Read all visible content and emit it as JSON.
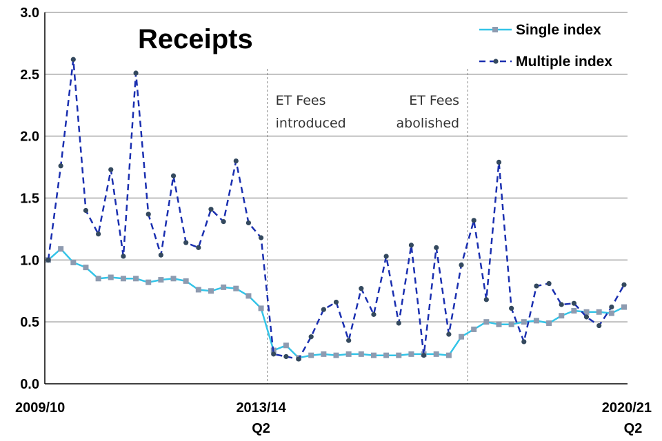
{
  "chart_data": {
    "type": "line",
    "title": "Receipts",
    "ylim": [
      0,
      3
    ],
    "y_ticks": [
      "0.0",
      "0.5",
      "1.0",
      "1.5",
      "2.0",
      "2.5",
      "3.0"
    ],
    "x_tick_labels": [
      {
        "line1": "2009/10",
        "line2": ""
      },
      {
        "line1": "2013/14",
        "line2": "Q2"
      },
      {
        "line1": "2020/21",
        "line2": "Q2"
      }
    ],
    "x_tick_indices": [
      0,
      17,
      46
    ],
    "grid": "horizontal",
    "legend_position": "top-right",
    "n_points": 47,
    "series": [
      {
        "name": "Single index",
        "color": "#33c4e8",
        "marker_color": "#8e9bb0",
        "style": "solid",
        "marker": "square",
        "values": [
          1.0,
          1.09,
          0.98,
          0.94,
          0.85,
          0.86,
          0.85,
          0.85,
          0.82,
          0.84,
          0.85,
          0.83,
          0.76,
          0.75,
          0.78,
          0.77,
          0.71,
          0.61,
          0.27,
          0.31,
          0.21,
          0.23,
          0.24,
          0.23,
          0.24,
          0.24,
          0.23,
          0.23,
          0.23,
          0.24,
          0.24,
          0.24,
          0.23,
          0.38,
          0.44,
          0.5,
          0.48,
          0.48,
          0.5,
          0.51,
          0.49,
          0.55,
          0.59,
          0.58,
          0.58,
          0.57,
          0.62
        ]
      },
      {
        "name": "Multiple index",
        "color": "#1a2fb0",
        "marker_color": "#34495e",
        "style": "dashed",
        "marker": "circle",
        "values": [
          1.0,
          1.76,
          2.62,
          1.4,
          1.21,
          1.73,
          1.03,
          2.51,
          1.37,
          1.04,
          1.68,
          1.14,
          1.1,
          1.41,
          1.31,
          1.8,
          1.3,
          1.18,
          0.24,
          0.22,
          0.2,
          0.38,
          0.6,
          0.66,
          0.35,
          0.77,
          0.56,
          1.03,
          0.49,
          1.12,
          0.23,
          1.1,
          0.4,
          0.96,
          1.32,
          0.68,
          1.79,
          0.61,
          0.34,
          0.79,
          0.81,
          0.64,
          0.65,
          0.54,
          0.47,
          0.62,
          0.8
        ]
      }
    ],
    "annotations": [
      {
        "at_index": 17.5,
        "lines": [
          "ET Fees",
          "introduced"
        ],
        "align": "start"
      },
      {
        "at_index": 33.5,
        "lines": [
          "ET Fees",
          "abolished"
        ],
        "align": "end"
      }
    ]
  }
}
